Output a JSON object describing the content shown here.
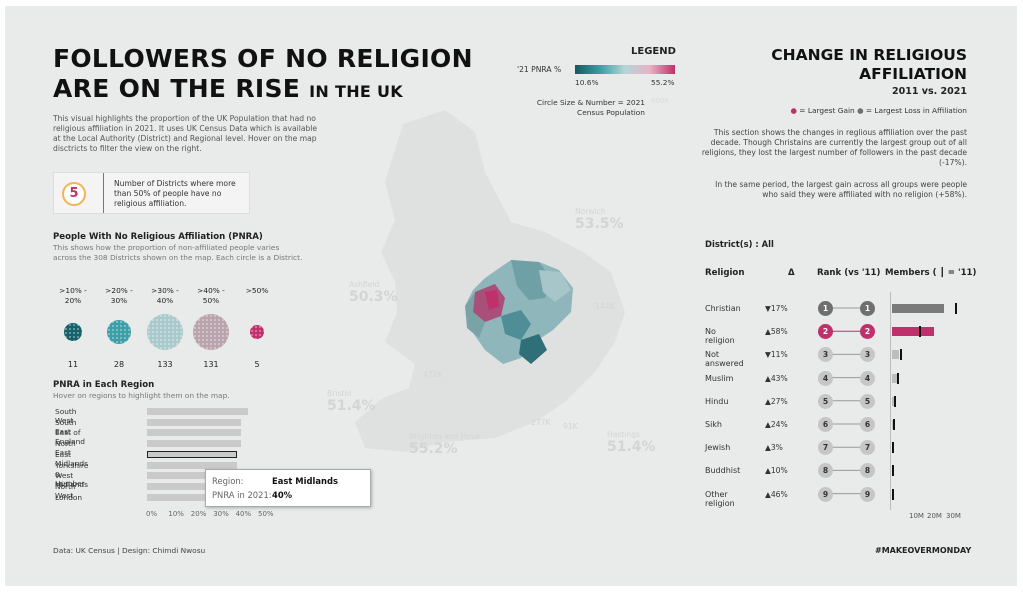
{
  "header": {
    "title_line1": "FOLLOWERS OF NO RELIGION",
    "title_line2": "ARE ON THE RISE",
    "title_small": "IN THE UK",
    "intro": "This visual highlights the proportion of the UK Population that had no religious affiliation in 2021. It uses UK Census Data which is available at the Local Authority (District) and Regional level. Hover on the map disctricts to filter the view on the right."
  },
  "districts_callout": {
    "count": "5",
    "text": "Number of Districts where more than 50% of people have no religious affiliation."
  },
  "pnra": {
    "title": "People With No Religious Affiliation (PNRA)",
    "subtitle": "This shows how the proportion of non-affiliated people varies across the 308 Districts shown on the map. Each circle is a District.",
    "bins": [
      {
        "label": ">10% - 20%",
        "count": "11",
        "color": "#15636a"
      },
      {
        "label": ">20% - 30%",
        "count": "28",
        "color": "#3c9ea7"
      },
      {
        "label": ">30% - 40%",
        "count": "133",
        "color": "#a9c9cc"
      },
      {
        "label": ">40% - 50%",
        "count": "131",
        "color": "#b9a3ac"
      },
      {
        "label": ">50%",
        "count": "5",
        "color": "#c0306a"
      }
    ]
  },
  "regions": {
    "title": "PNRA in Each Region",
    "subtitle": "Hover on regions to highlight them on the map.",
    "items": [
      {
        "name": "South West",
        "value": 45
      },
      {
        "name": "South East",
        "value": 42
      },
      {
        "name": "East of England",
        "value": 42
      },
      {
        "name": "North East",
        "value": 42
      },
      {
        "name": "East Midlands",
        "value": 40
      },
      {
        "name": "Yorkshire & Humber",
        "value": 40
      },
      {
        "name": "West Midlands",
        "value": 40
      },
      {
        "name": "North West",
        "value": 40
      },
      {
        "name": "London",
        "value": 40
      }
    ],
    "axis": [
      "0%",
      "10%",
      "20%",
      "30%",
      "40%",
      "50%"
    ],
    "tooltip": {
      "region_label": "Region:",
      "region_value": "East Midlands",
      "pnra_label": "PNRA in 2021:",
      "pnra_value": "40%"
    }
  },
  "legend": {
    "title": "LEGEND",
    "pnra_label": "'21 PNRA %",
    "min": "10.6%",
    "max": "55.2%",
    "circle_text_1": "Circle Size & Number = 2021",
    "circle_text_2": "Census Population",
    "circle_example": "600K"
  },
  "map": {
    "labels": [
      {
        "name": "Norwich",
        "value": "53.5%"
      },
      {
        "name": "Ashfield",
        "value": "50.3%"
      },
      {
        "name": "Bristol",
        "value": "51.4%"
      },
      {
        "name": "Brighton and Hove",
        "value": "55.2%"
      },
      {
        "name": "Hastings",
        "value": "51.4%"
      }
    ],
    "pop_labels": [
      "144K",
      "472K",
      "277K",
      "91K"
    ]
  },
  "right": {
    "title_line1": "CHANGE IN RELIGIOUS",
    "title_line2": "AFFILIATION",
    "subtitle": "2011 vs. 2021",
    "legend_gain": "= Largest Gain",
    "legend_loss": "= Largest Loss",
    "legend_tail": "in Affiliation",
    "para1": "This section shows the changes in reglious affiliation over the past decade. Though  Christains  are currently the largest group out of all religions, they lost the largest number of followers in the past decade (-17%).",
    "para2": "In the same period, the largest gain across all groups were people who said they were affiliated with  no religion (+58%).",
    "district_filter": "District(s) : All",
    "col_religion": "Religion",
    "col_delta": "Δ",
    "col_rank": "Rank (vs '11)",
    "col_members": "Members ( ┃ = '11)",
    "members_axis": [
      "10M",
      "20M",
      "30M"
    ],
    "rows": [
      {
        "name": "Christian",
        "delta": "▼17%",
        "rank21": "1",
        "rank11": "1",
        "m21": 27.5,
        "m11": 33.3
      },
      {
        "name": "No religion",
        "delta": "▲58%",
        "rank21": "2",
        "rank11": "2",
        "m21": 22.2,
        "m11": 14.1
      },
      {
        "name": "Not answered",
        "delta": "▼11%",
        "rank21": "3",
        "rank11": "3",
        "m21": 3.6,
        "m11": 4.0
      },
      {
        "name": "Muslim",
        "delta": "▲43%",
        "rank21": "4",
        "rank11": "4",
        "m21": 3.9,
        "m11": 2.7
      },
      {
        "name": "Hindu",
        "delta": "▲27%",
        "rank21": "5",
        "rank11": "5",
        "m21": 1.0,
        "m11": 0.8
      },
      {
        "name": "Sikh",
        "delta": "▲24%",
        "rank21": "6",
        "rank11": "6",
        "m21": 0.52,
        "m11": 0.42
      },
      {
        "name": "Jewish",
        "delta": "▲3%",
        "rank21": "7",
        "rank11": "7",
        "m21": 0.27,
        "m11": 0.26
      },
      {
        "name": "Buddhist",
        "delta": "▲10%",
        "rank21": "8",
        "rank11": "8",
        "m21": 0.27,
        "m11": 0.25
      },
      {
        "name": "Other religion",
        "delta": "▲46%",
        "rank21": "9",
        "rank11": "9",
        "m21": 0.35,
        "m11": 0.24
      }
    ],
    "rank_highlight": {
      "gain": "#c0306a",
      "loss": "#6f6f6f"
    }
  },
  "footer": {
    "credits": "Data: UK Census | Design: Chimdi Nwosu",
    "hashtag": "#MAKEOVERMONDAY"
  }
}
